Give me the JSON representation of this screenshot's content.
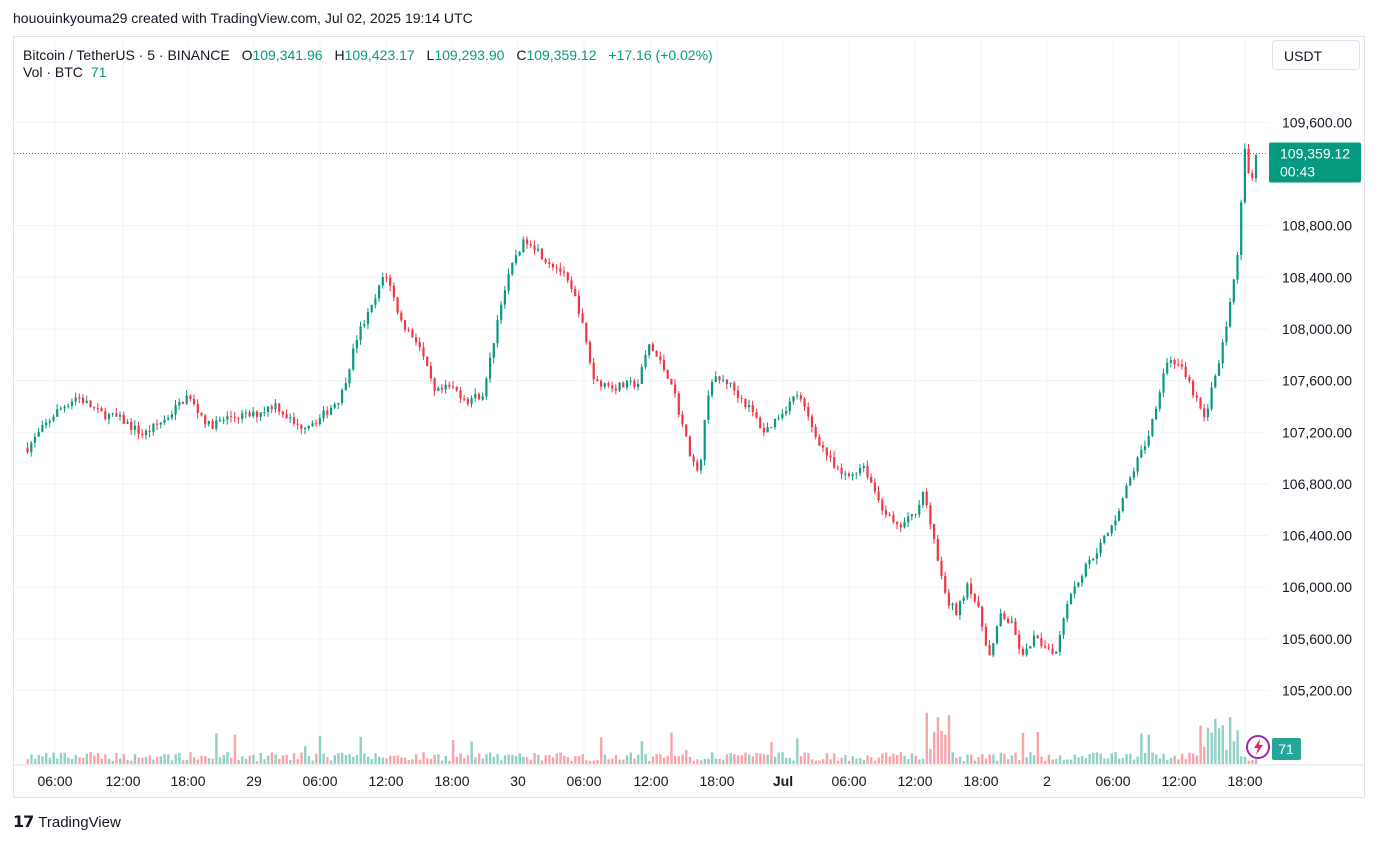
{
  "header": {
    "snapshot_text": "hououinkyouma29 created with TradingView.com, Jul 02, 2025 19:14 UTC"
  },
  "legend": {
    "symbol": "Bitcoin / TetherUS · 5 · BINANCE",
    "open_label": "O",
    "open": "109,341.96",
    "high_label": "H",
    "high": "109,423.17",
    "low_label": "L",
    "low": "109,293.90",
    "close_label": "C",
    "close": "109,359.12",
    "change": "+17.16 (+0.02%)",
    "vol_label": "Vol · BTC",
    "vol_value": "71"
  },
  "currency_button": "USDT",
  "price_badge": {
    "price": "109,359.12",
    "countdown": "00:43"
  },
  "volume_badge": "71",
  "footer": {
    "brand": "TradingView"
  },
  "colors": {
    "up": "#089981",
    "down": "#f23645",
    "grid": "#f0f3fa",
    "axis_text": "#131722"
  },
  "chart_data": {
    "type": "candlestick",
    "title": "Bitcoin / TetherUS · 5 · BINANCE",
    "y_ticks": [
      105200,
      105600,
      106000,
      106400,
      106800,
      107200,
      107600,
      108000,
      108400,
      108800,
      109600
    ],
    "y_tick_labels": [
      "105,200.00",
      "105,600.00",
      "106,000.00",
      "106,400.00",
      "106,800.00",
      "107,200.00",
      "107,600.00",
      "108,000.00",
      "108,400.00",
      "108,800.00",
      "109,600.00"
    ],
    "ylim": [
      104870,
      110100
    ],
    "x_labels": [
      "06:00",
      "12:00",
      "18:00",
      "29",
      "06:00",
      "12:00",
      "18:00",
      "30",
      "06:00",
      "12:00",
      "18:00",
      "Jul",
      "06:00",
      "12:00",
      "18:00",
      "2",
      "06:00",
      "12:00",
      "18:00"
    ],
    "current_price": 109359.12,
    "price_path": [
      [
        "Jun 28 03:30",
        107080
      ],
      [
        "Jun 28 06:00",
        107350
      ],
      [
        "Jun 28 08:00",
        107480
      ],
      [
        "Jun 28 10:00",
        107350
      ],
      [
        "Jun 28 12:00",
        107300
      ],
      [
        "Jun 28 14:00",
        107180
      ],
      [
        "Jun 28 16:00",
        107300
      ],
      [
        "Jun 28 18:00",
        107480
      ],
      [
        "Jun 28 20:00",
        107250
      ],
      [
        "Jun 28 22:00",
        107320
      ],
      [
        "Jun 29 00:00",
        107330
      ],
      [
        "Jun 29 02:00",
        107420
      ],
      [
        "Jun 29 04:00",
        107240
      ],
      [
        "Jun 29 06:00",
        107300
      ],
      [
        "Jun 29 08:00",
        107480
      ],
      [
        "Jun 29 09:30",
        107950
      ],
      [
        "Jun 29 11:00",
        108200
      ],
      [
        "Jun 29 12:00",
        108450
      ],
      [
        "Jun 29 13:30",
        108050
      ],
      [
        "Jun 29 15:00",
        107900
      ],
      [
        "Jun 29 16:30",
        107500
      ],
      [
        "Jun 29 18:00",
        107550
      ],
      [
        "Jun 29 19:30",
        107450
      ],
      [
        "Jun 29 21:00",
        107500
      ],
      [
        "Jun 29 22:30",
        108200
      ],
      [
        "Jun 30 00:00",
        108600
      ],
      [
        "Jun 30 01:00",
        108700
      ],
      [
        "Jun 30 02:30",
        108550
      ],
      [
        "Jun 30 04:00",
        108450
      ],
      [
        "Jun 30 05:30",
        108200
      ],
      [
        "Jun 30 07:00",
        107600
      ],
      [
        "Jun 30 09:00",
        107550
      ],
      [
        "Jun 30 11:00",
        107580
      ],
      [
        "Jun 30 12:00",
        107880
      ],
      [
        "Jun 30 14:00",
        107600
      ],
      [
        "Jun 30 15:30",
        107100
      ],
      [
        "Jun 30 16:30",
        106850
      ],
      [
        "Jun 30 17:30",
        107600
      ],
      [
        "Jun 30 19:00",
        107600
      ],
      [
        "Jun 30 21:00",
        107400
      ],
      [
        "Jun 30 22:30",
        107200
      ],
      [
        "Jul 01 00:00",
        107350
      ],
      [
        "Jul 01 01:30",
        107500
      ],
      [
        "Jul 01 03:00",
        107200
      ],
      [
        "Jul 01 05:00",
        106900
      ],
      [
        "Jul 01 06:00",
        106850
      ],
      [
        "Jul 01 07:30",
        106950
      ],
      [
        "Jul 01 09:00",
        106650
      ],
      [
        "Jul 01 10:30",
        106450
      ],
      [
        "Jul 01 12:00",
        106550
      ],
      [
        "Jul 01 13:00",
        106750
      ],
      [
        "Jul 01 14:00",
        106300
      ],
      [
        "Jul 01 15:00",
        105900
      ],
      [
        "Jul 01 16:00",
        105800
      ],
      [
        "Jul 01 17:00",
        106050
      ],
      [
        "Jul 01 18:00",
        105800
      ],
      [
        "Jul 01 19:00",
        105450
      ],
      [
        "Jul 01 20:00",
        105800
      ],
      [
        "Jul 01 21:00",
        105700
      ],
      [
        "Jul 01 22:00",
        105450
      ],
      [
        "Jul 01 23:00",
        105600
      ],
      [
        "Jul 02 00:00",
        105550
      ],
      [
        "Jul 02 01:00",
        105500
      ],
      [
        "Jul 02 02:00",
        105900
      ],
      [
        "Jul 02 04:00",
        106200
      ],
      [
        "Jul 02 06:00",
        106450
      ],
      [
        "Jul 02 08:00",
        106900
      ],
      [
        "Jul 02 09:30",
        107200
      ],
      [
        "Jul 02 11:00",
        107750
      ],
      [
        "Jul 02 12:00",
        107750
      ],
      [
        "Jul 02 13:30",
        107500
      ],
      [
        "Jul 02 14:30",
        107300
      ],
      [
        "Jul 02 15:30",
        107650
      ],
      [
        "Jul 02 16:30",
        108000
      ],
      [
        "Jul 02 17:30",
        108550
      ],
      [
        "Jul 02 18:10",
        109400
      ],
      [
        "Jul 02 18:40",
        109100
      ],
      [
        "Jul 02 19:00",
        109300
      ],
      [
        "Jul 02 19:14",
        109359
      ]
    ],
    "grid": true
  }
}
